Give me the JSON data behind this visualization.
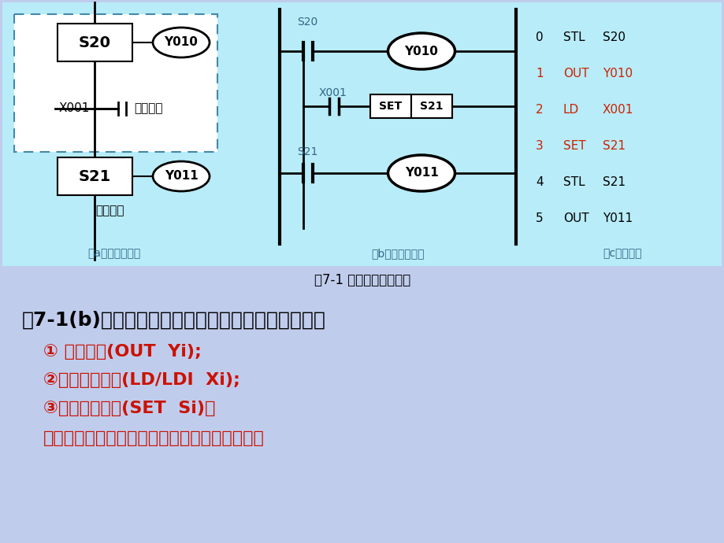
{
  "bg_color": "#c0ccec",
  "diagram_bg": "#b8ecf8",
  "title": "图7-1 步进指令表示方法",
  "label_a": "（a）状态转移图",
  "label_b": "（b）状态梯形图",
  "label_c": "（c）指令表",
  "instruction_table": [
    {
      "step": "0",
      "cmd": "STL",
      "arg": "S20",
      "color": "black"
    },
    {
      "step": "1",
      "cmd": "OUT",
      "arg": "Y010",
      "color": "#cc2200"
    },
    {
      "step": "2",
      "cmd": "LD",
      "arg": "X001",
      "color": "#cc2200"
    },
    {
      "step": "3",
      "cmd": "SET",
      "arg": "S21",
      "color": "#cc2200"
    },
    {
      "step": "4",
      "cmd": "STL",
      "arg": "S21",
      "color": "black"
    },
    {
      "step": "5",
      "cmd": "OUT",
      "arg": "Y011",
      "color": "black"
    }
  ],
  "text_line0": "图7-1(b)中每个状态的内母线上都将提供三种功能：",
  "text_line1": "① 驱动负载(OUT  Yi);",
  "text_line2": "②指定转移条件(LD/LDI  Xi);",
  "text_line3": "③指定转移目标(SET  Si)。",
  "text_line4": "称为状态的三要素。后两个功能是必不可少的。",
  "s20_label": "S20",
  "s21_label": "S21",
  "y010_label": "Y010",
  "y011_label": "Y011",
  "x001_label": "X001",
  "set_label": "SET",
  "zhuanyi_tiaojian": "转移条件",
  "zhuanyi_mubiao": "转移目标"
}
